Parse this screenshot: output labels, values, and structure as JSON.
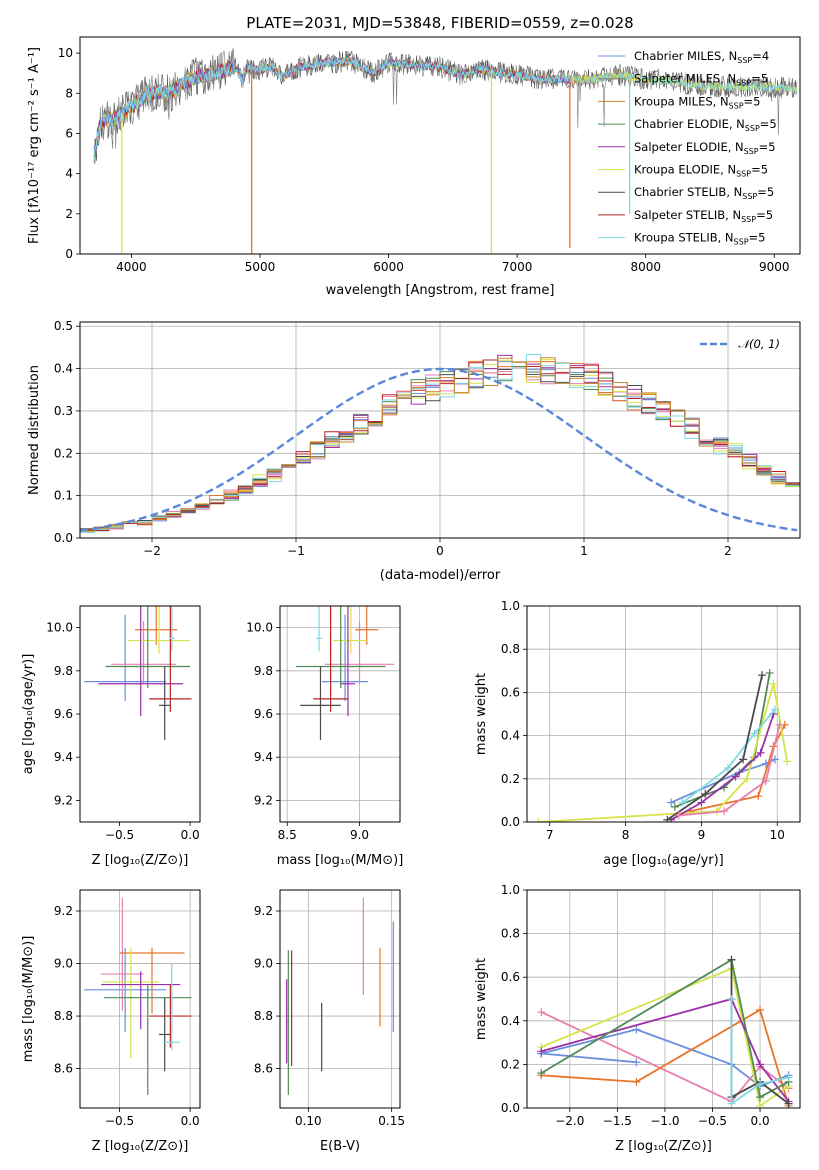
{
  "colors": [
    "#6a8fde",
    "#7b7b7b",
    "#c98a2e",
    "#4f8a57",
    "#9c2fa6",
    "#d7e34a",
    "#4a4a4a",
    "#b82424",
    "#7fd8e2"
  ],
  "extra_colors": [
    "#e8742a",
    "#e87fb0"
  ],
  "chart_data": [
    {
      "id": "spectrum",
      "type": "line",
      "title": "PLATE=2031, MJD=53848, FIBERID=0559, z=0.028",
      "xlabel": "wavelength [Angstrom, rest frame]",
      "ylabel": "Flux [fλ10⁻¹⁷ erg cm⁻² s⁻¹ A⁻¹]",
      "xlim": [
        3600,
        9200
      ],
      "ylim": [
        0,
        10.8
      ],
      "xticks": [
        "4000",
        "5000",
        "6000",
        "7000",
        "8000",
        "9000"
      ],
      "yticks": [
        "0",
        "2",
        "4",
        "6",
        "8",
        "10"
      ],
      "grid": false,
      "legend_position": "top-right",
      "legend": [
        {
          "name": "Chabrier MILES, N",
          "sub": "SSP",
          "tail": "=4"
        },
        {
          "name": "Salpeter MILES, N",
          "sub": "SSP",
          "tail": "=5"
        },
        {
          "name": "Kroupa MILES, N",
          "sub": "SSP",
          "tail": "=5"
        },
        {
          "name": "Chabrier ELODIE, N",
          "sub": "SSP",
          "tail": "=5"
        },
        {
          "name": "Salpeter ELODIE, N",
          "sub": "SSP",
          "tail": "=5"
        },
        {
          "name": "Kroupa ELODIE, N",
          "sub": "SSP",
          "tail": "=5"
        },
        {
          "name": "Chabrier STELIB, N",
          "sub": "SSP",
          "tail": "=5"
        },
        {
          "name": "Salpeter STELIB, N",
          "sub": "SSP",
          "tail": "=5"
        },
        {
          "name": "Kroupa STELIB, N",
          "sub": "SSP",
          "tail": "=5"
        }
      ],
      "continuum": [
        [
          3700,
          4.6
        ],
        [
          3750,
          6.3
        ],
        [
          3800,
          6.7
        ],
        [
          3850,
          6.7
        ],
        [
          3900,
          6.9
        ],
        [
          3950,
          7.1
        ],
        [
          4000,
          7.3
        ],
        [
          4100,
          7.9
        ],
        [
          4200,
          8.1
        ],
        [
          4300,
          8.0
        ],
        [
          4400,
          8.5
        ],
        [
          4500,
          8.8
        ],
        [
          4600,
          8.9
        ],
        [
          4700,
          9.1
        ],
        [
          4800,
          9.3
        ],
        [
          4861,
          8.7
        ],
        [
          4900,
          9.2
        ],
        [
          5000,
          9.2
        ],
        [
          5100,
          9.3
        ],
        [
          5175,
          8.8
        ],
        [
          5300,
          9.3
        ],
        [
          5500,
          9.5
        ],
        [
          5700,
          9.6
        ],
        [
          5890,
          9.0
        ],
        [
          6000,
          9.5
        ],
        [
          6200,
          9.4
        ],
        [
          6400,
          9.3
        ],
        [
          6563,
          8.9
        ],
        [
          6700,
          9.2
        ],
        [
          6900,
          9.0
        ],
        [
          7000,
          8.9
        ],
        [
          7200,
          8.7
        ],
        [
          7400,
          8.7
        ],
        [
          7600,
          8.7
        ],
        [
          7800,
          8.9
        ],
        [
          8000,
          8.7
        ],
        [
          8200,
          8.6
        ],
        [
          8400,
          8.4
        ],
        [
          8600,
          8.3
        ],
        [
          8800,
          8.3
        ],
        [
          9000,
          8.3
        ],
        [
          9200,
          8.2
        ]
      ],
      "spikes": [
        {
          "x": 3925,
          "y": 0.0
        },
        {
          "x": 4935,
          "y": 0.0
        },
        {
          "x": 6800,
          "y": 0.0
        },
        {
          "x": 7410,
          "y": 0.3
        },
        {
          "x": 7875,
          "y": 2.0
        }
      ]
    },
    {
      "id": "residuals",
      "type": "histogram",
      "xlabel": "(data-model)/error",
      "ylabel": "Normed distribution",
      "xlim": [
        -2.5,
        2.5
      ],
      "ylim": [
        0,
        0.51
      ],
      "xticks": [
        "−2",
        "−1",
        "0",
        "1",
        "2"
      ],
      "yticks": [
        "0.0",
        "0.1",
        "0.2",
        "0.3",
        "0.4",
        "0.5"
      ],
      "grid": true,
      "legend": {
        "label": "𝒩(0, 1)",
        "style": "dashed",
        "color": "#5b87d9"
      },
      "bin_edges_start": -2.5,
      "bin_width": 0.1,
      "mean_density": [
        0.018,
        0.022,
        0.026,
        0.032,
        0.038,
        0.046,
        0.055,
        0.065,
        0.076,
        0.088,
        0.102,
        0.117,
        0.133,
        0.15,
        0.168,
        0.188,
        0.208,
        0.228,
        0.25,
        0.27,
        0.29,
        0.31,
        0.33,
        0.345,
        0.358,
        0.37,
        0.378,
        0.385,
        0.39,
        0.397,
        0.4,
        0.398,
        0.395,
        0.39,
        0.383,
        0.374,
        0.363,
        0.35,
        0.335,
        0.318,
        0.3,
        0.282,
        0.262,
        0.242,
        0.222,
        0.202,
        0.182,
        0.162,
        0.142,
        0.124,
        0.107,
        0.092,
        0.077,
        0.064,
        0.052,
        0.042,
        0.034,
        0.028,
        0.023,
        0.02
      ],
      "note_values": "series shown as noisy replicas of mean_density"
    },
    {
      "id": "age-vs-Z",
      "type": "scatter",
      "xlabel": "Z [log₁₀(Z/Z⊙)]",
      "ylabel": "age  [log₁₀(age/yr)]",
      "xlim": [
        -0.78,
        0.07
      ],
      "ylim": [
        9.1,
        10.1
      ],
      "xticks": [
        "−0.5",
        "0.0"
      ],
      "yticks": [
        "9.2",
        "9.4",
        "9.6",
        "9.8",
        "10.0"
      ],
      "grid": false,
      "points": [
        {
          "x": -0.46,
          "y": 9.75,
          "xerr": 0.29,
          "yerr": [
            0.09,
            0.31
          ],
          "c": 0
        },
        {
          "x": -0.33,
          "y": 9.83,
          "xerr": 0.23,
          "yerr": [
            0.09,
            0.2
          ],
          "c": 10
        },
        {
          "x": -0.24,
          "y": 9.99,
          "xerr": 0.15,
          "yerr": [
            0.07,
            0.39
          ],
          "c": 9
        },
        {
          "x": -0.22,
          "y": 9.94,
          "xerr": 0.22,
          "yerr": [
            0.06,
            0.6
          ],
          "c": 5
        },
        {
          "x": -0.35,
          "y": 9.74,
          "xerr": 0.3,
          "yerr": [
            0.15,
            0.5
          ],
          "c": 4
        },
        {
          "x": -0.3,
          "y": 9.82,
          "xerr": 0.3,
          "yerr": [
            0.1,
            0.38
          ],
          "c": 3
        },
        {
          "x": -0.18,
          "y": 9.64,
          "xerr": 0.04,
          "yerr": [
            0.16,
            0.18
          ],
          "c": 6
        },
        {
          "x": -0.14,
          "y": 9.67,
          "xerr": 0.15,
          "yerr": [
            0.06,
            0.52
          ],
          "c": 7
        },
        {
          "x": -0.13,
          "y": 9.95,
          "xerr": 0.02,
          "yerr": [
            0.06,
            0.3
          ],
          "c": 8
        }
      ]
    },
    {
      "id": "age-vs-mass",
      "type": "scatter",
      "xlabel": "mass [log₁₀(M/M⊙)]",
      "ylabel": "",
      "xlim": [
        8.45,
        9.28
      ],
      "ylim": [
        9.1,
        10.1
      ],
      "xticks": [
        "8.5",
        "9.0"
      ],
      "yticks": [
        "9.2",
        "9.4",
        "9.6",
        "9.8",
        "10.0"
      ],
      "grid": true,
      "points": [
        {
          "x": 8.9,
          "y": 9.75,
          "xerr": 0.16,
          "yerr": [
            0.09,
            0.31
          ],
          "c": 0
        },
        {
          "x": 9.0,
          "y": 9.83,
          "xerr": 0.24,
          "yerr": [
            0.09,
            0.2
          ],
          "c": 10
        },
        {
          "x": 9.05,
          "y": 9.99,
          "xerr": 0.08,
          "yerr": [
            0.07,
            0.39
          ],
          "c": 9
        },
        {
          "x": 8.94,
          "y": 9.94,
          "xerr": 0.12,
          "yerr": [
            0.06,
            0.6
          ],
          "c": 5
        },
        {
          "x": 8.92,
          "y": 9.74,
          "xerr": 0.05,
          "yerr": [
            0.15,
            0.5
          ],
          "c": 4
        },
        {
          "x": 8.87,
          "y": 9.82,
          "xerr": 0.31,
          "yerr": [
            0.1,
            0.38
          ],
          "c": 3
        },
        {
          "x": 8.73,
          "y": 9.64,
          "xerr": 0.14,
          "yerr": [
            0.16,
            0.18
          ],
          "c": 6
        },
        {
          "x": 8.8,
          "y": 9.67,
          "xerr": 0.12,
          "yerr": [
            0.06,
            0.52
          ],
          "c": 7
        },
        {
          "x": 8.72,
          "y": 9.95,
          "xerr": 0.02,
          "yerr": [
            0.06,
            0.3
          ],
          "c": 8
        }
      ]
    },
    {
      "id": "weight-vs-age",
      "type": "line",
      "xlabel": "age  [log₁₀(age/yr)]",
      "ylabel": "mass weight",
      "xlim": [
        6.7,
        10.3
      ],
      "ylim": [
        0,
        1.0
      ],
      "xticks": [
        "7",
        "8",
        "9",
        "10"
      ],
      "yticks": [
        "0.0",
        "0.2",
        "0.4",
        "0.6",
        "0.8",
        "1.0"
      ],
      "grid": true,
      "series": [
        {
          "c": 0,
          "x": [
            8.6,
            9.5,
            9.85,
            9.97
          ],
          "y": [
            0.09,
            0.23,
            0.27,
            0.29
          ]
        },
        {
          "c": 9,
          "x": [
            8.85,
            9.75,
            9.95,
            10.1
          ],
          "y": [
            0.05,
            0.12,
            0.35,
            0.45
          ]
        },
        {
          "c": 3,
          "x": [
            8.65,
            9.3,
            9.7,
            9.9
          ],
          "y": [
            0.07,
            0.16,
            0.3,
            0.69
          ]
        },
        {
          "c": 5,
          "x": [
            6.85,
            9.2,
            9.6,
            9.95,
            10.13
          ],
          "y": [
            0.0,
            0.05,
            0.2,
            0.64,
            0.28
          ]
        },
        {
          "c": 4,
          "x": [
            8.6,
            9.0,
            9.45,
            9.78,
            9.95
          ],
          "y": [
            0.01,
            0.09,
            0.21,
            0.32,
            0.5
          ]
        },
        {
          "c": 8,
          "x": [
            8.75,
            9.35,
            9.7,
            9.97
          ],
          "y": [
            0.09,
            0.25,
            0.41,
            0.52
          ]
        },
        {
          "c": 6,
          "x": [
            8.55,
            9.05,
            9.55,
            9.8
          ],
          "y": [
            0.01,
            0.13,
            0.29,
            0.68
          ]
        },
        {
          "c": 10,
          "x": [
            8.7,
            9.3,
            9.85,
            10.03
          ],
          "y": [
            0.03,
            0.05,
            0.19,
            0.45
          ]
        }
      ]
    },
    {
      "id": "mass-vs-Z",
      "type": "scatter",
      "xlabel": "Z [log₁₀(Z/Z⊙)]",
      "ylabel": "mass [log₁₀(M/M⊙)]",
      "xlim": [
        -0.78,
        0.07
      ],
      "ylim": [
        8.45,
        9.28
      ],
      "xticks": [
        "−0.5",
        "0.0"
      ],
      "yticks": [
        "8.6",
        "8.8",
        "9.0",
        "9.2"
      ],
      "grid": true,
      "points": [
        {
          "x": -0.46,
          "y": 8.9,
          "xerr": 0.29,
          "yerr": [
            0.16,
            0.16
          ],
          "c": 0
        },
        {
          "x": -0.48,
          "y": 8.96,
          "xerr": 0.15,
          "yerr": [
            0.14,
            0.29
          ],
          "c": 10
        },
        {
          "x": -0.27,
          "y": 9.04,
          "xerr": 0.23,
          "yerr": [
            0.23,
            0.02
          ],
          "c": 9
        },
        {
          "x": -0.42,
          "y": 8.93,
          "xerr": 0.2,
          "yerr": [
            0.29,
            0.13
          ],
          "c": 5
        },
        {
          "x": -0.35,
          "y": 8.92,
          "xerr": 0.28,
          "yerr": [
            0.17,
            0.05
          ],
          "c": 4
        },
        {
          "x": -0.3,
          "y": 8.87,
          "xerr": 0.31,
          "yerr": [
            0.37,
            0.05
          ],
          "c": 3
        },
        {
          "x": -0.18,
          "y": 8.73,
          "xerr": 0.04,
          "yerr": [
            0.14,
            0.14
          ],
          "c": 6
        },
        {
          "x": -0.14,
          "y": 8.8,
          "xerr": 0.15,
          "yerr": [
            0.12,
            0.12
          ],
          "c": 7
        },
        {
          "x": -0.13,
          "y": 8.7,
          "xerr": 0.06,
          "yerr": [
            0.03,
            0.3
          ],
          "c": 8
        }
      ]
    },
    {
      "id": "mass-vs-ebv",
      "type": "scatter",
      "xlabel": "E(B-V)",
      "ylabel": "",
      "xlim": [
        0.083,
        0.155
      ],
      "ylim": [
        8.45,
        9.28
      ],
      "xticks": [
        "0.10",
        "0.15"
      ],
      "yticks": [
        "8.6",
        "8.8",
        "9.0",
        "9.2"
      ],
      "grid": true,
      "points": [
        {
          "x": 0.151,
          "y": 8.9,
          "xerr": 0,
          "yerr": [
            0.16,
            0.26
          ],
          "c": 0
        },
        {
          "x": 0.133,
          "y": 9.05,
          "xerr": 0,
          "yerr": [
            0.17,
            0.2
          ],
          "c": 10
        },
        {
          "x": 0.143,
          "y": 8.9,
          "xerr": 0,
          "yerr": [
            0.14,
            0.16
          ],
          "c": 9
        },
        {
          "x": 0.088,
          "y": 8.85,
          "xerr": 0,
          "yerr": [
            0.35,
            0.2
          ],
          "c": 3
        },
        {
          "x": 0.09,
          "y": 8.8,
          "xerr": 0,
          "yerr": [
            0.19,
            0.25
          ],
          "c": 7
        },
        {
          "x": 0.108,
          "y": 8.72,
          "xerr": 0,
          "yerr": [
            0.13,
            0.13
          ],
          "c": 6
        },
        {
          "x": 0.087,
          "y": 8.78,
          "xerr": 0,
          "yerr": [
            0.16,
            0.16
          ],
          "c": 4
        }
      ]
    },
    {
      "id": "weight-vs-Z",
      "type": "line",
      "xlabel": "Z [log₁₀(Z/Z⊙)]",
      "ylabel": "mass weight",
      "xlim": [
        -2.45,
        0.42
      ],
      "ylim": [
        0,
        1.0
      ],
      "xticks": [
        "−2.0",
        "−1.5",
        "−1.0",
        "−0.5",
        "0.0"
      ],
      "yticks": [
        "0.0",
        "0.2",
        "0.4",
        "0.6",
        "0.8",
        "1.0"
      ],
      "grid": true,
      "series": [
        {
          "c": 0,
          "x": [
            -2.3,
            -1.3,
            -0.3,
            0.0,
            0.3
          ],
          "y": [
            0.25,
            0.36,
            0.2,
            0.1,
            0.15
          ]
        },
        {
          "c": 0,
          "x": [
            -2.3,
            -1.3
          ],
          "y": [
            0.25,
            0.21
          ]
        },
        {
          "c": 10,
          "x": [
            -2.3,
            -0.3,
            0.0,
            0.3
          ],
          "y": [
            0.44,
            0.03,
            0.19,
            0.09
          ]
        },
        {
          "c": 9,
          "x": [
            -2.3,
            -1.3,
            0.0,
            0.3
          ],
          "y": [
            0.15,
            0.12,
            0.45,
            0.01
          ]
        },
        {
          "c": 5,
          "x": [
            -2.3,
            -0.3,
            0.0,
            0.3
          ],
          "y": [
            0.28,
            0.64,
            0.01,
            0.1
          ]
        },
        {
          "c": 4,
          "x": [
            -2.3,
            -0.3,
            0.0,
            0.3
          ],
          "y": [
            0.26,
            0.5,
            0.2,
            0.03
          ]
        },
        {
          "c": 3,
          "x": [
            -2.3,
            -0.3,
            0.0,
            0.3
          ],
          "y": [
            0.16,
            0.68,
            0.05,
            0.12
          ]
        },
        {
          "c": 6,
          "x": [
            -0.3,
            -0.3,
            0.0,
            0.3
          ],
          "y": [
            0.68,
            0.05,
            0.12,
            0.02
          ]
        },
        {
          "c": 8,
          "x": [
            -0.3,
            -0.3,
            0.0,
            0.3
          ],
          "y": [
            0.5,
            0.02,
            0.11,
            0.14
          ]
        }
      ]
    }
  ]
}
